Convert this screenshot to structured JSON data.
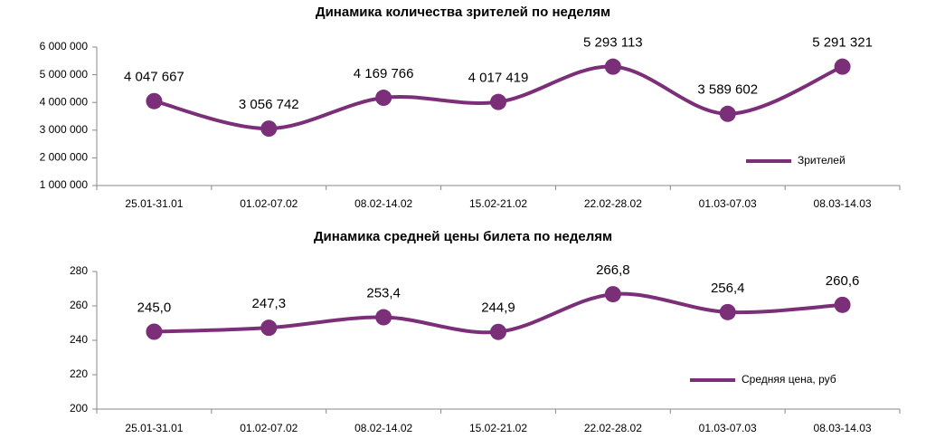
{
  "chart_data": [
    {
      "type": "line",
      "title": "Динамика количества зрителей по неделям",
      "categories": [
        "25.01-31.01",
        "01.02-07.02",
        "08.02-14.02",
        "15.02-21.02",
        "22.02-28.02",
        "01.03-07.03",
        "08.03-14.03"
      ],
      "series": [
        {
          "name": "Зрителей",
          "color": "#7a2f78",
          "values": [
            4047667,
            3056742,
            4169766,
            4017419,
            5293113,
            3589602,
            5291321
          ],
          "value_labels": [
            "4 047 667",
            "3 056 742",
            "4 169 766",
            "4 017 419",
            "5 293 113",
            "3 589 602",
            "5 291 321"
          ]
        }
      ],
      "ylim": [
        1000000,
        6000000
      ],
      "yticks": [
        {
          "value": 1000000,
          "label": "1 000 000"
        },
        {
          "value": 2000000,
          "label": "2 000 000"
        },
        {
          "value": 3000000,
          "label": "3 000 000"
        },
        {
          "value": 4000000,
          "label": "4 000 000"
        },
        {
          "value": 5000000,
          "label": "5 000 000"
        },
        {
          "value": 6000000,
          "label": "6 000 000"
        }
      ],
      "legend": "bottom-right"
    },
    {
      "type": "line",
      "title": "Динамика средней цены билета по неделям",
      "categories": [
        "25.01-31.01",
        "01.02-07.02",
        "08.02-14.02",
        "15.02-21.02",
        "22.02-28.02",
        "01.03-07.03",
        "08.03-14.03"
      ],
      "series": [
        {
          "name": "Средняя цена, руб",
          "color": "#7a2f78",
          "values": [
            245.0,
            247.3,
            253.4,
            244.9,
            266.8,
            256.4,
            260.6
          ],
          "value_labels": [
            "245,0",
            "247,3",
            "253,4",
            "244,9",
            "266,8",
            "256,4",
            "260,6"
          ]
        }
      ],
      "ylim": [
        200,
        280
      ],
      "yticks": [
        200,
        220,
        240,
        260,
        280
      ],
      "legend": "bottom-right"
    }
  ]
}
